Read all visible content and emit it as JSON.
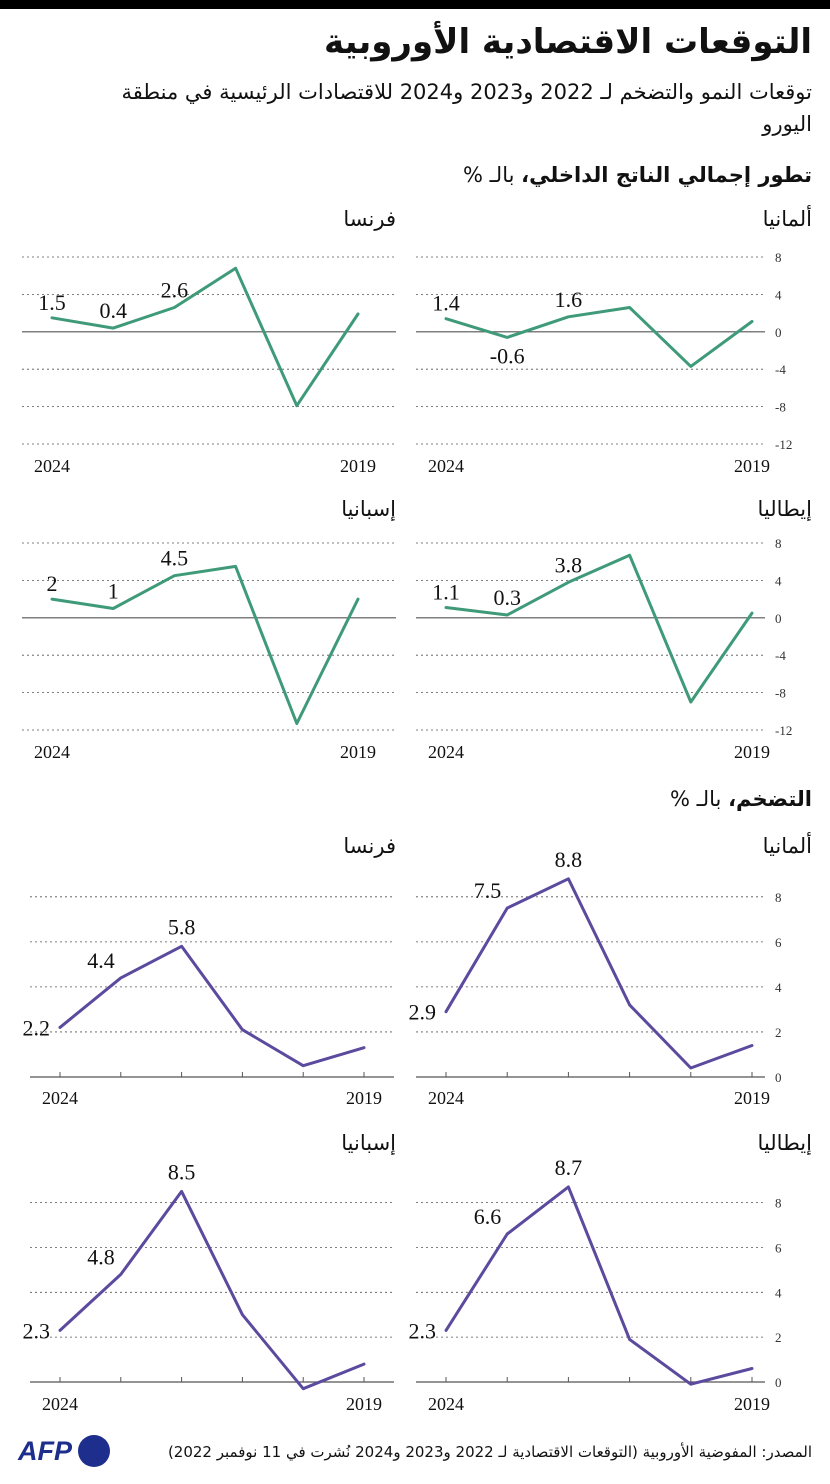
{
  "title": "التوقعات الاقتصادية الأوروبية",
  "subtitle": "توقعات النمو والتضخم لـ 2022 و2023 و2024 للاقتصادات الرئيسية في منطقة اليورو",
  "gdp_section": {
    "bold": "تطور إجمالي الناتج الداخلي،",
    "rest": " بالـ %"
  },
  "inflation_section": {
    "bold": "التضخم،",
    "rest": " بالـ %"
  },
  "source": "المصدر: المفوضية الأوروبية (التوقعات الاقتصادية لـ 2022 و2023 و2024 نُشرت في 11 نوفمبر 2022)",
  "logo": "AFP",
  "colors": {
    "gdp": "#3e9a78",
    "inflation": "#5b4a9e",
    "grid": "#555555",
    "logo": "#1d2e8c"
  },
  "chart_data": [
    {
      "type": "line",
      "group": "gdp",
      "country": "ألمانيا",
      "x": [
        2019,
        2020,
        2021,
        2022,
        2023,
        2024
      ],
      "values": [
        1.1,
        -3.7,
        2.6,
        1.6,
        -0.6,
        1.4
      ],
      "data_labels": [
        {
          "year": 2022,
          "text": "1.6"
        },
        {
          "year": 2023,
          "text": "-0.6"
        },
        {
          "year": 2024,
          "text": "1.4"
        }
      ],
      "x_tick_labels": [
        "2024",
        "2019"
      ],
      "y_ticks": [
        8,
        4,
        0,
        -4,
        -8,
        -12
      ],
      "ylim": [
        -12,
        8
      ],
      "y_tick_labels_shown": true
    },
    {
      "type": "line",
      "group": "gdp",
      "country": "فرنسا",
      "x": [
        2019,
        2020,
        2021,
        2022,
        2023,
        2024
      ],
      "values": [
        1.9,
        -7.9,
        6.8,
        2.6,
        0.4,
        1.5
      ],
      "data_labels": [
        {
          "year": 2022,
          "text": "2.6"
        },
        {
          "year": 2023,
          "text": "0.4"
        },
        {
          "year": 2024,
          "text": "1.5"
        }
      ],
      "x_tick_labels": [
        "2024",
        "2019"
      ],
      "y_ticks": [
        8,
        4,
        0,
        -4,
        -8,
        -12
      ],
      "ylim": [
        -12,
        8
      ],
      "y_tick_labels_shown": false
    },
    {
      "type": "line",
      "group": "gdp",
      "country": "إيطاليا",
      "x": [
        2019,
        2020,
        2021,
        2022,
        2023,
        2024
      ],
      "values": [
        0.5,
        -9.0,
        6.7,
        3.8,
        0.3,
        1.1
      ],
      "data_labels": [
        {
          "year": 2022,
          "text": "3.8"
        },
        {
          "year": 2023,
          "text": "0.3"
        },
        {
          "year": 2024,
          "text": "1.1"
        }
      ],
      "x_tick_labels": [
        "2024",
        "2019"
      ],
      "y_ticks": [
        8,
        4,
        0,
        -4,
        -8,
        -12
      ],
      "ylim": [
        -12,
        8
      ],
      "y_tick_labels_shown": true
    },
    {
      "type": "line",
      "group": "gdp",
      "country": "إسبانيا",
      "x": [
        2019,
        2020,
        2021,
        2022,
        2023,
        2024
      ],
      "values": [
        2.0,
        -11.3,
        5.5,
        4.5,
        1.0,
        2.0
      ],
      "data_labels": [
        {
          "year": 2022,
          "text": "4.5"
        },
        {
          "year": 2023,
          "text": "1"
        },
        {
          "year": 2024,
          "text": "2"
        }
      ],
      "x_tick_labels": [
        "2024",
        "2019"
      ],
      "y_ticks": [
        8,
        4,
        0,
        -4,
        -8,
        -12
      ],
      "ylim": [
        -12,
        8
      ],
      "y_tick_labels_shown": false
    },
    {
      "type": "line",
      "group": "inflation",
      "country": "ألمانيا",
      "x": [
        2019,
        2020,
        2021,
        2022,
        2023,
        2024
      ],
      "values": [
        1.4,
        0.4,
        3.2,
        8.8,
        7.5,
        2.9
      ],
      "data_labels": [
        {
          "year": 2022,
          "text": "8.8"
        },
        {
          "year": 2023,
          "text": "7.5"
        },
        {
          "year": 2024,
          "text": "2.9"
        }
      ],
      "x_tick_labels": [
        "2024",
        "2019"
      ],
      "y_ticks": [
        8,
        6,
        4,
        2,
        0
      ],
      "ylim": [
        0,
        9.5
      ],
      "y_tick_labels_shown": true
    },
    {
      "type": "line",
      "group": "inflation",
      "country": "فرنسا",
      "x": [
        2019,
        2020,
        2021,
        2022,
        2023,
        2024
      ],
      "values": [
        1.3,
        0.5,
        2.1,
        5.8,
        4.4,
        2.2
      ],
      "data_labels": [
        {
          "year": 2022,
          "text": "5.8"
        },
        {
          "year": 2023,
          "text": "4.4"
        },
        {
          "year": 2024,
          "text": "2.2"
        }
      ],
      "x_tick_labels": [
        "2024",
        "2019"
      ],
      "y_ticks": [
        8,
        6,
        4,
        2,
        0
      ],
      "ylim": [
        0,
        9.5
      ],
      "y_tick_labels_shown": false
    },
    {
      "type": "line",
      "group": "inflation",
      "country": "إيطاليا",
      "x": [
        2019,
        2020,
        2021,
        2022,
        2023,
        2024
      ],
      "values": [
        0.6,
        -0.1,
        1.9,
        8.7,
        6.6,
        2.3
      ],
      "data_labels": [
        {
          "year": 2022,
          "text": "8.7"
        },
        {
          "year": 2023,
          "text": "6.6"
        },
        {
          "year": 2024,
          "text": "2.3"
        }
      ],
      "x_tick_labels": [
        "2024",
        "2019"
      ],
      "y_ticks": [
        8,
        6,
        4,
        2,
        0
      ],
      "ylim": [
        0,
        9.5
      ],
      "y_tick_labels_shown": true
    },
    {
      "type": "line",
      "group": "inflation",
      "country": "إسبانيا",
      "x": [
        2019,
        2020,
        2021,
        2022,
        2023,
        2024
      ],
      "values": [
        0.8,
        -0.3,
        3.0,
        8.5,
        4.8,
        2.3
      ],
      "data_labels": [
        {
          "year": 2022,
          "text": "8.5"
        },
        {
          "year": 2023,
          "text": "4.8"
        },
        {
          "year": 2024,
          "text": "2.3"
        }
      ],
      "x_tick_labels": [
        "2024",
        "2019"
      ],
      "y_ticks": [
        8,
        6,
        4,
        2,
        0
      ],
      "ylim": [
        0,
        9.5
      ],
      "y_tick_labels_shown": false
    }
  ]
}
